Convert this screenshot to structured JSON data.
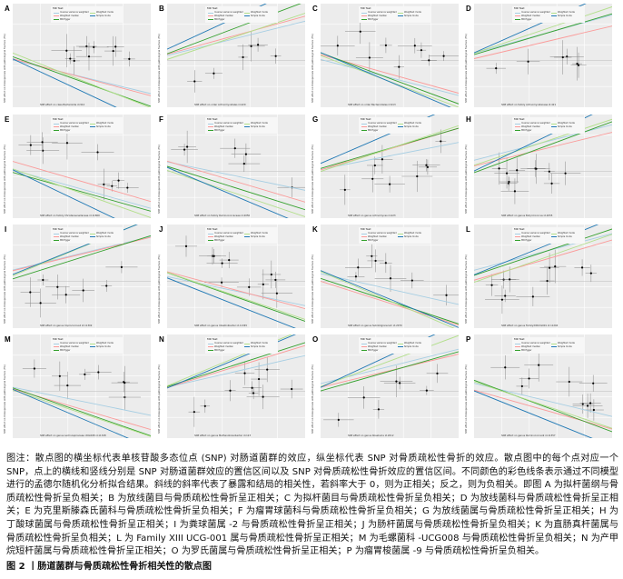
{
  "legend": {
    "title": "MR Test",
    "items": [
      {
        "label": "Inverse variance weighted",
        "color": "#a6cee3"
      },
      {
        "label": "Weighted median",
        "color": "#fb9a99"
      },
      {
        "label": "MR Egger",
        "color": "#33a02c"
      },
      {
        "label": "Weighted mode",
        "color": "#b2df8a"
      },
      {
        "label": "Simple mode",
        "color": "#1f78b4"
      }
    ]
  },
  "y_axis_label": "SNP effect on Osteoporosis with pathological fracture (FG)",
  "chart_data": [
    {
      "letter": "A",
      "type": "scatter",
      "xlabel": "SNP effect on class Bacteroidia id.912",
      "direction": "negative"
    },
    {
      "letter": "B",
      "type": "scatter",
      "xlabel": "SNP effect on order Actinomycetales id.420",
      "direction": "positive"
    },
    {
      "letter": "C",
      "type": "scatter",
      "xlabel": "SNP effect on order Bacteroidales id.913",
      "direction": "negative"
    },
    {
      "letter": "D",
      "type": "scatter",
      "xlabel": "SNP effect on family Actinomycetaceae id.421",
      "direction": "positive"
    },
    {
      "letter": "E",
      "type": "scatter",
      "xlabel": "SNP effect on family Christensenellaceae id.11869",
      "direction": "negative"
    },
    {
      "letter": "F",
      "type": "scatter",
      "xlabel": "SNP effect on family Ruminococcaceae id.2050",
      "direction": "negative"
    },
    {
      "letter": "G",
      "type": "scatter",
      "xlabel": "SNP effect on genus Actinomyces id.423",
      "direction": "positive"
    },
    {
      "letter": "H",
      "type": "scatter",
      "xlabel": "SNP effect on genus Butyricicoccus id.2055",
      "direction": "positive"
    },
    {
      "letter": "I",
      "type": "scatter",
      "xlabel": "SNP effect on genus Coprococcus2 id.11302",
      "direction": "positive"
    },
    {
      "letter": "J",
      "type": "scatter",
      "xlabel": "SNP effect on genus Intestinibacter id.11345",
      "direction": "negative"
    },
    {
      "letter": "K",
      "type": "scatter",
      "xlabel": "SNP effect on genus Subdoligranulum id.2070",
      "direction": "negative"
    },
    {
      "letter": "L",
      "type": "scatter",
      "xlabel": "SNP effect on genus FamilyXIIIUCG001 id.11294",
      "direction": "positive"
    },
    {
      "letter": "M",
      "type": "scatter",
      "xlabel": "SNP effect on genus Lachnospiraceae UCG008 id.11328",
      "direction": "negative"
    },
    {
      "letter": "N",
      "type": "scatter",
      "xlabel": "SNP effect on genus Methanobrevibacter id.123",
      "direction": "positive"
    },
    {
      "letter": "O",
      "type": "scatter",
      "xlabel": "SNP effect on genus Roseburia id.2012",
      "direction": "positive"
    },
    {
      "letter": "P",
      "type": "scatter",
      "xlabel": "SNP effect on genus Ruminococcus9 id.11357",
      "direction": "negative"
    }
  ],
  "caption": "图注：散点图的横坐标代表单核苷酸多态位点 (SNP) 对肠道菌群的效应，纵坐标代表 SNP 对骨质疏松性骨折的效应。散点图中的每个点对应一个 SNP，点上的横线和竖线分别是 SNP 对肠道菌群效应的置信区间以及 SNP 对骨质疏松性骨折效应的置信区间。不同颜色的彩色线条表示通过不同模型进行的孟德尔随机化分析拟合结果。斜线的斜率代表了暴露和结局的相关性，若斜率大于 0，则为正相关；反之，则为负相关。即图 A 为拟杆菌纲与骨质疏松性骨折呈负相关；B 为放线菌目与骨质疏松性骨折呈正相关；C 为拟杆菌目与骨质疏松性骨折呈负相关；D 为放线菌科与骨质疏松性骨折呈正相关；E 为克里斯滕森氏菌科与骨质疏松性骨折呈负相关；F 为瘤胃球菌科与骨质疏松性骨折呈负相关；G 为放线菌属与骨质疏松性骨折呈正相关；H 为丁酸球菌属与骨质疏松性骨折呈正相关；I 为粪球菌属 -2 与骨质疏松性骨折呈正相关；J 为肠杆菌属与骨质疏松性骨折呈负相关；K 为直肠真杆菌属与骨质疏松性骨折呈负相关；L 为 Family XIII UCG-001 属与骨质疏松性骨折呈正相关；M 为毛螺菌科 -UCG008 与骨质疏松性骨折呈负相关；N 为产甲烷短杆菌属与骨质疏松性骨折呈正相关；O 为罗氏菌属与骨质疏松性骨折呈正相关；P 为瘤胃梭菌属 -9 与骨质疏松性骨折呈负相关。",
  "figure_title": "图 2 丨肠道菌群与骨质疏松性骨折相关性的散点图"
}
